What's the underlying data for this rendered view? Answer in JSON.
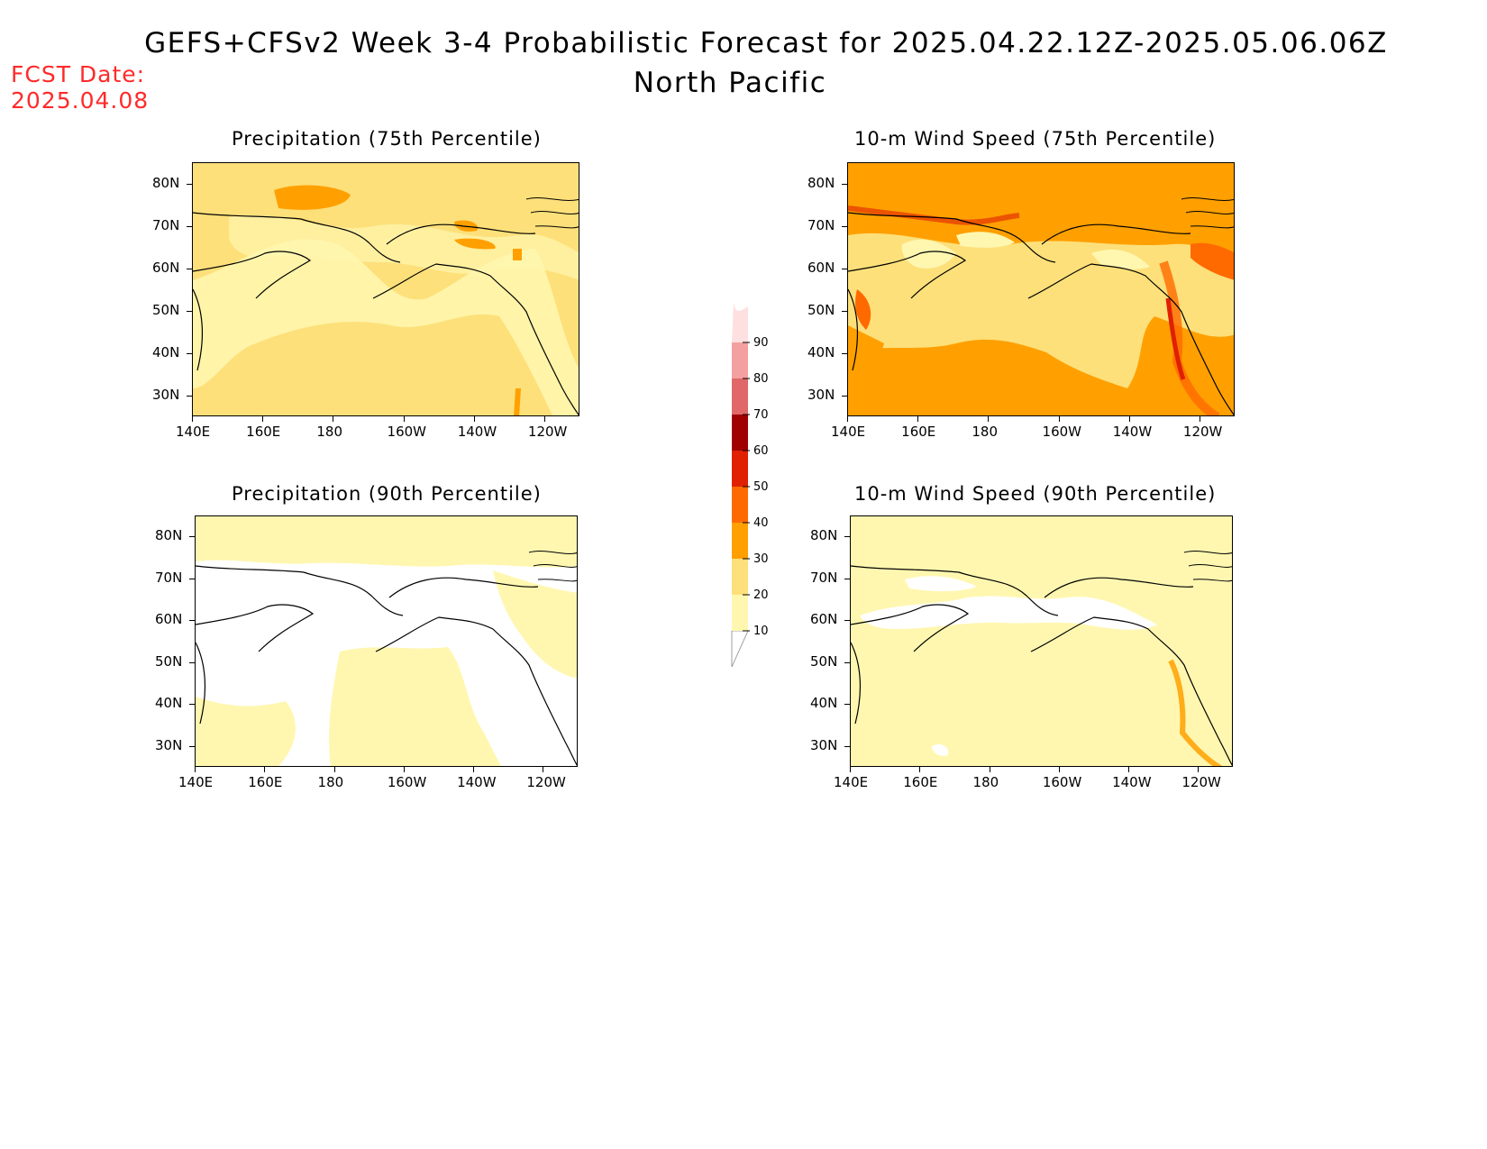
{
  "header": {
    "title": "GEFS+CFSv2 Week 3-4 Probabilistic Forecast for 2025.04.22.12Z-2025.05.06.06Z",
    "subtitle": "North Pacific",
    "fcst_label": "FCST Date:",
    "fcst_date": "2025.04.08"
  },
  "axes": {
    "lat_labels": [
      "80N",
      "70N",
      "60N",
      "50N",
      "40N",
      "30N"
    ],
    "lon_labels": [
      "140E",
      "160E",
      "180",
      "160W",
      "140W",
      "120W"
    ]
  },
  "panels": [
    {
      "id": "precip-75",
      "title": "Precipitation (75th Percentile)",
      "dominant_class": 20
    },
    {
      "id": "wind-75",
      "title": "10-m Wind Speed (75th Percentile)",
      "dominant_class": 30
    },
    {
      "id": "precip-90",
      "title": "Precipitation (90th Percentile)",
      "dominant_class": 10
    },
    {
      "id": "wind-90",
      "title": "10-m Wind Speed (90th Percentile)",
      "dominant_class": 10
    }
  ],
  "colorbar": {
    "levels": [
      "10",
      "20",
      "30",
      "40",
      "50",
      "60",
      "70",
      "80",
      "90"
    ],
    "colors": [
      "#fff7b0",
      "#fde07a",
      "#ffa000",
      "#ff6a00",
      "#e02000",
      "#a00000",
      "#e06868",
      "#f4a0a0",
      "#ffe0e0"
    ]
  },
  "colors": {
    "white": "#ffffff",
    "light_yellow": "#fff7b0",
    "yellow": "#fde07a",
    "orange": "#ffa000",
    "dark_orange": "#ff6a00",
    "red": "#e02000",
    "fcst_red": "#ff2a2a"
  }
}
